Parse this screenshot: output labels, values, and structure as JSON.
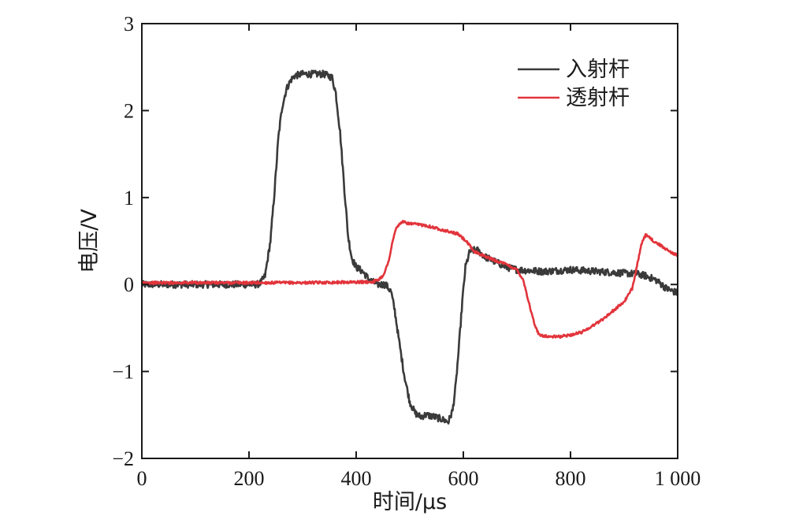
{
  "chart_data": {
    "type": "line",
    "xlabel": "时间/μs",
    "ylabel": "电压/V",
    "xlim": [
      0,
      1000
    ],
    "ylim": [
      -2,
      3
    ],
    "x_ticks": [
      0,
      200,
      400,
      600,
      800,
      1000
    ],
    "x_tick_labels": [
      "0",
      "200",
      "400",
      "600",
      "800",
      "1 000"
    ],
    "y_ticks": [
      -2,
      -1,
      0,
      1,
      2,
      3
    ],
    "y_tick_labels": [
      "−2",
      "−1",
      "0",
      "1",
      "2",
      "3"
    ],
    "grid": false,
    "legend_position": "top-right",
    "series": [
      {
        "name": "入射杆",
        "color": "#3a3a3a",
        "noise": 0.04,
        "x": [
          0,
          215,
          222,
          230,
          240,
          248,
          255,
          262,
          270,
          278,
          285,
          300,
          320,
          340,
          355,
          362,
          370,
          378,
          385,
          392,
          400,
          412,
          425,
          440,
          455,
          465,
          472,
          480,
          490,
          500,
          510,
          520,
          530,
          545,
          560,
          572,
          580,
          586,
          592,
          598,
          604,
          612,
          625,
          640,
          660,
          680,
          700,
          750,
          800,
          850,
          900,
          925,
          940,
          960,
          980,
          1000
        ],
        "y": [
          0.0,
          0.0,
          0.02,
          0.1,
          0.5,
          1.1,
          1.7,
          2.05,
          2.25,
          2.35,
          2.4,
          2.42,
          2.42,
          2.42,
          2.38,
          2.2,
          1.75,
          1.1,
          0.55,
          0.3,
          0.2,
          0.15,
          0.05,
          0.0,
          0.0,
          -0.08,
          -0.3,
          -0.65,
          -1.05,
          -1.35,
          -1.48,
          -1.52,
          -1.5,
          -1.52,
          -1.55,
          -1.58,
          -1.45,
          -1.15,
          -0.7,
          -0.2,
          0.2,
          0.38,
          0.4,
          0.32,
          0.26,
          0.2,
          0.17,
          0.15,
          0.17,
          0.15,
          0.13,
          0.12,
          0.1,
          0.05,
          -0.05,
          -0.1
        ]
      },
      {
        "name": "透射杆",
        "color": "#e2343b",
        "noise": 0.015,
        "x": [
          0,
          300,
          430,
          440,
          450,
          460,
          468,
          475,
          485,
          500,
          530,
          560,
          590,
          605,
          620,
          650,
          680,
          700,
          712,
          720,
          728,
          735,
          742,
          760,
          780,
          800,
          820,
          840,
          860,
          880,
          900,
          915,
          925,
          932,
          940,
          955,
          975,
          1000
        ],
        "y": [
          0.02,
          0.02,
          0.03,
          0.05,
          0.1,
          0.25,
          0.5,
          0.65,
          0.72,
          0.7,
          0.68,
          0.63,
          0.58,
          0.5,
          0.38,
          0.3,
          0.23,
          0.17,
          0.05,
          -0.15,
          -0.35,
          -0.5,
          -0.58,
          -0.6,
          -0.6,
          -0.58,
          -0.55,
          -0.48,
          -0.4,
          -0.3,
          -0.2,
          -0.05,
          0.25,
          0.45,
          0.57,
          0.5,
          0.42,
          0.33
        ]
      }
    ]
  }
}
